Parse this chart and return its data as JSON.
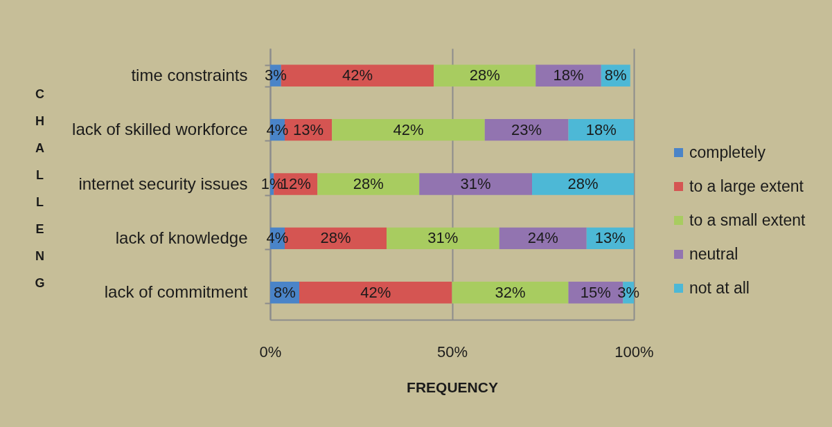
{
  "chart_data": {
    "type": "bar",
    "orientation": "horizontal",
    "stacked": true,
    "xlabel": "FREQUENCY",
    "ylabel": "CHALLENG",
    "categories": [
      "time constraints",
      "lack of skilled workforce",
      "internet security issues",
      "lack of knowledge",
      "lack of commitment"
    ],
    "series": [
      {
        "name": "completely",
        "color": "#4a84c8",
        "values": [
          0.03,
          0.04,
          0.01,
          0.04,
          0.08
        ],
        "value_labels": [
          "3%",
          "4%",
          "1%",
          "4%",
          "8%"
        ]
      },
      {
        "name": "to a large extent",
        "color": "#d55552",
        "values": [
          0.42,
          0.13,
          0.12,
          0.28,
          0.42
        ],
        "value_labels": [
          "42%",
          "13%",
          "12%",
          "28%",
          "42%"
        ]
      },
      {
        "name": "to a small extent",
        "color": "#a8cc60",
        "values": [
          0.28,
          0.42,
          0.28,
          0.31,
          0.32
        ],
        "value_labels": [
          "28%",
          "42%",
          "28%",
          "31%",
          "32%"
        ]
      },
      {
        "name": "neutral",
        "color": "#9274b0",
        "values": [
          0.18,
          0.23,
          0.31,
          0.24,
          0.15
        ],
        "value_labels": [
          "18%",
          "23%",
          "31%",
          "24%",
          "15%"
        ]
      },
      {
        "name": "not at all",
        "color": "#4db8d6",
        "values": [
          0.08,
          0.18,
          0.28,
          0.13,
          0.03
        ],
        "value_labels": [
          "8%",
          "18%",
          "28%",
          "13%",
          "3%"
        ]
      }
    ],
    "xlim": [
      0,
      1
    ],
    "xticks": [
      {
        "value": 0,
        "label": "0%"
      },
      {
        "value": 0.5,
        "label": "50%"
      },
      {
        "value": 1,
        "label": "100%"
      }
    ],
    "grid": "x",
    "legend": "right"
  }
}
